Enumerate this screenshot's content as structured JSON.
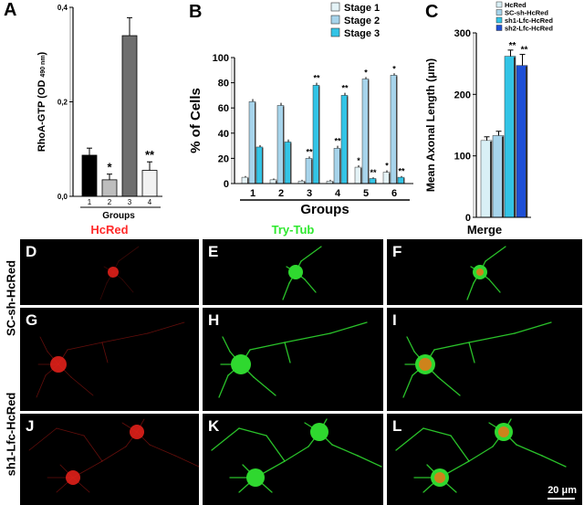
{
  "panels": {
    "A": "A",
    "B": "B",
    "C": "C",
    "D": "D",
    "E": "E",
    "F": "F",
    "G": "G",
    "H": "H",
    "I": "I",
    "J": "J",
    "K": "K",
    "L": "L"
  },
  "chart_data": [
    {
      "id": "A",
      "type": "bar",
      "ylabel": "RhoA-GTP (OD",
      "ylabel_sub": "490 nm",
      "ylabel_close": ")",
      "xlabel": "Groups",
      "ylim": [
        0,
        0.4
      ],
      "yticks": [
        "0,0",
        "0,2",
        "0,4"
      ],
      "ytick_values": [
        0,
        0.2,
        0.4
      ],
      "categories": [
        "1",
        "2",
        "3",
        "4"
      ],
      "values": [
        0.087,
        0.035,
        0.34,
        0.055
      ],
      "errors": [
        0.015,
        0.012,
        0.038,
        0.018
      ],
      "colors": [
        "#000000",
        "#bdbdbd",
        "#6e6e6e",
        "#f2f2f2"
      ],
      "annotations": [
        "",
        "*",
        "",
        "**"
      ]
    },
    {
      "id": "B",
      "type": "bar",
      "ylabel": "% of Cells",
      "xlabel": "Groups",
      "ylim": [
        0,
        100
      ],
      "yticks": [
        "0",
        "20",
        "40",
        "60",
        "80",
        "100"
      ],
      "ytick_values": [
        0,
        20,
        40,
        60,
        80,
        100
      ],
      "categories": [
        "1",
        "2",
        "3",
        "4",
        "5",
        "6"
      ],
      "legend_position": "top-right",
      "series": [
        {
          "name": "Stage 1",
          "color": "#e4f3f7",
          "values": [
            5,
            3,
            2,
            2,
            13,
            9
          ],
          "errors": [
            1,
            1,
            1,
            1,
            1.5,
            1.5
          ],
          "annotations": [
            "",
            "",
            "",
            "",
            "*",
            "*"
          ]
        },
        {
          "name": "Stage 2",
          "color": "#a7d4eb",
          "values": [
            65,
            62,
            20,
            28,
            83,
            86
          ],
          "errors": [
            2,
            2,
            1.5,
            2,
            1.5,
            1.5
          ],
          "annotations": [
            "",
            "",
            "**",
            "**",
            "*",
            "*"
          ]
        },
        {
          "name": "Stage 3",
          "color": "#33c4e6",
          "values": [
            29,
            33,
            78,
            70,
            4,
            5
          ],
          "errors": [
            1.5,
            2,
            2,
            2,
            1,
            1
          ],
          "annotations": [
            "",
            "",
            "**",
            "**",
            "**",
            "**"
          ]
        }
      ]
    },
    {
      "id": "C",
      "type": "bar",
      "ylabel": "Mean Axonal Length (μm)",
      "ylim": [
        0,
        300
      ],
      "yticks": [
        "0",
        "100",
        "200",
        "300"
      ],
      "ytick_values": [
        0,
        100,
        200,
        300
      ],
      "legend_position": "top",
      "categories": [
        "HcRed",
        "SC-sh-HcRed",
        "sh1-Lfc-HcRed",
        "sh2-Lfc-HcRed"
      ],
      "values": [
        125,
        133,
        262,
        247
      ],
      "errors": [
        6,
        7,
        10,
        18
      ],
      "colors": [
        "#d9f0f6",
        "#a7d4eb",
        "#33c4e6",
        "#1e4fd6"
      ],
      "annotations": [
        "",
        "",
        "**",
        "**"
      ]
    }
  ],
  "micrographs": {
    "col_titles": [
      "HcRed",
      "Try-Tub",
      "Merge"
    ],
    "col_colors": [
      "#ff2a2a",
      "#2ee82e",
      "#000000"
    ],
    "row_labels": [
      "SC-sh-HcRed",
      "sh1-Lfc-HcRed"
    ],
    "scale_bar": "20 μm"
  }
}
